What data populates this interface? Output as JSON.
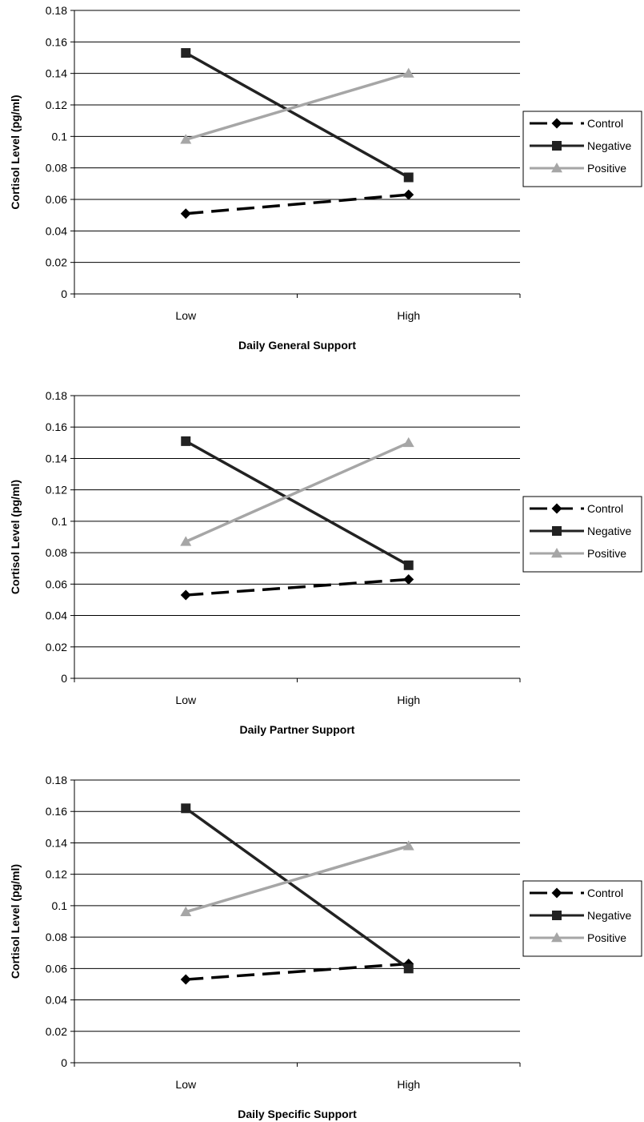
{
  "chart_data": [
    {
      "type": "line",
      "categories": [
        "Low",
        "High"
      ],
      "series": [
        {
          "name": "Control",
          "values": [
            0.051,
            0.063
          ],
          "color": "#000000",
          "dash": "dashed",
          "marker": "diamond"
        },
        {
          "name": "Negative",
          "values": [
            0.153,
            0.074
          ],
          "color": "#222222",
          "dash": "solid",
          "marker": "square"
        },
        {
          "name": "Positive",
          "values": [
            0.098,
            0.14
          ],
          "color": "#a6a6a6",
          "dash": "solid",
          "marker": "triangle"
        }
      ],
      "xlabel": "Daily General Support",
      "ylabel": "Cortisol Level (pg/ml)",
      "ylim": [
        0,
        0.18
      ],
      "yticks": [
        "0",
        "0.02",
        "0.04",
        "0.06",
        "0.08",
        "0.1",
        "0.12",
        "0.14",
        "0.16",
        "0.18"
      ],
      "grid": true,
      "legend": "right"
    },
    {
      "type": "line",
      "categories": [
        "Low",
        "High"
      ],
      "series": [
        {
          "name": "Control",
          "values": [
            0.053,
            0.063
          ],
          "color": "#000000",
          "dash": "dashed",
          "marker": "diamond"
        },
        {
          "name": "Negative",
          "values": [
            0.151,
            0.072
          ],
          "color": "#222222",
          "dash": "solid",
          "marker": "square"
        },
        {
          "name": "Positive",
          "values": [
            0.087,
            0.15
          ],
          "color": "#a6a6a6",
          "dash": "solid",
          "marker": "triangle"
        }
      ],
      "xlabel": "Daily Partner Support",
      "ylabel": "Cortisol Level (pg/ml)",
      "ylim": [
        0,
        0.18
      ],
      "yticks": [
        "0",
        "0.02",
        "0.04",
        "0.06",
        "0.08",
        "0.1",
        "0.12",
        "0.14",
        "0.16",
        "0.18"
      ],
      "grid": true,
      "legend": "right"
    },
    {
      "type": "line",
      "categories": [
        "Low",
        "High"
      ],
      "series": [
        {
          "name": "Control",
          "values": [
            0.053,
            0.063
          ],
          "color": "#000000",
          "dash": "dashed",
          "marker": "diamond"
        },
        {
          "name": "Negative",
          "values": [
            0.162,
            0.06
          ],
          "color": "#222222",
          "dash": "solid",
          "marker": "square"
        },
        {
          "name": "Positive",
          "values": [
            0.096,
            0.138
          ],
          "color": "#a6a6a6",
          "dash": "solid",
          "marker": "triangle"
        }
      ],
      "xlabel": "Daily Specific Support",
      "ylabel": "Cortisol Level (pg/ml)",
      "ylim": [
        0,
        0.18
      ],
      "yticks": [
        "0",
        "0.02",
        "0.04",
        "0.06",
        "0.08",
        "0.1",
        "0.12",
        "0.14",
        "0.16",
        "0.18"
      ],
      "grid": true,
      "legend": "right"
    }
  ]
}
